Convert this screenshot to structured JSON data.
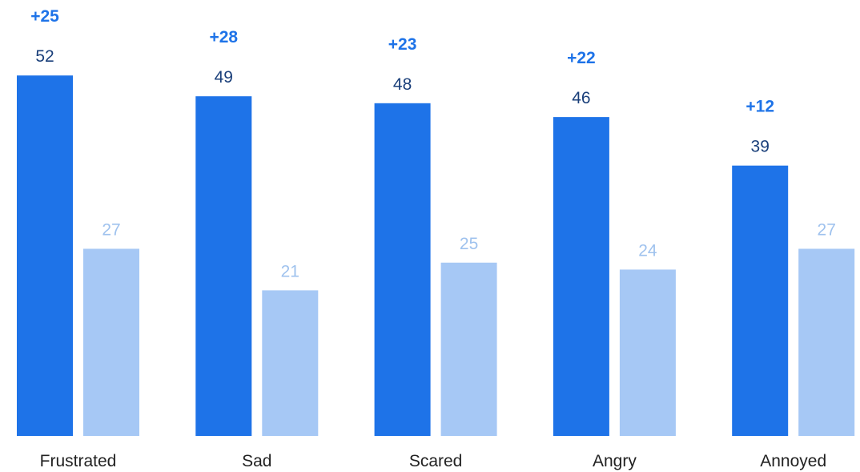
{
  "colors": {
    "series_primary": "#1e73e8",
    "series_secondary": "#a6c8f5",
    "primary_label": "#1a3f7a",
    "secondary_label": "#9fc2ee",
    "difference_label": "#1e73e8",
    "category_label": "#222222"
  },
  "chart_data": {
    "type": "bar",
    "categories": [
      "Frustrated",
      "Sad",
      "Scared",
      "Angry",
      "Annoyed"
    ],
    "series": [
      {
        "values": [
          52,
          49,
          48,
          46,
          39
        ]
      },
      {
        "values": [
          27,
          21,
          25,
          24,
          27
        ]
      }
    ],
    "differences": [
      "+25",
      "+28",
      "+23",
      "+22",
      "+12"
    ],
    "title": "",
    "xlabel": "",
    "ylabel": "",
    "ylim": [
      0,
      52
    ],
    "grid": false,
    "legend": "none"
  }
}
